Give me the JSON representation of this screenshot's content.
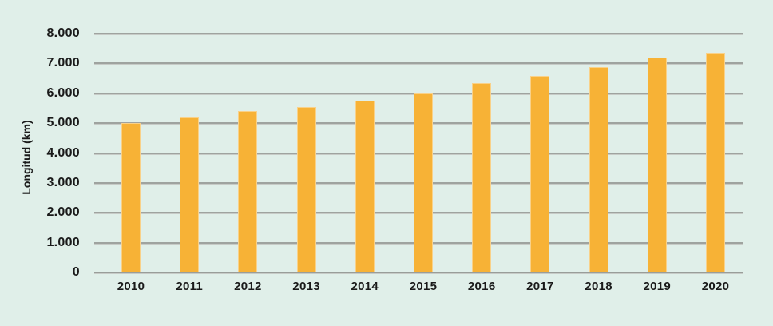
{
  "page": {
    "background_color": "#e0efe9",
    "text_color": "#1a1a1a"
  },
  "chart_data": {
    "type": "bar",
    "title": "",
    "xlabel": "",
    "ylabel": "Longitud (km)",
    "categories": [
      "2010",
      "2011",
      "2012",
      "2013",
      "2014",
      "2015",
      "2016",
      "2017",
      "2018",
      "2019",
      "2020"
    ],
    "values": [
      5000,
      5200,
      5400,
      5550,
      5750,
      6000,
      6350,
      6570,
      6870,
      7200,
      7350
    ],
    "ylim": [
      0,
      8000
    ],
    "ytick_values": [
      0,
      1000,
      2000,
      3000,
      4000,
      5000,
      6000,
      7000,
      8000
    ],
    "ytick_labels": [
      "0",
      "1.000",
      "2.000",
      "3.000",
      "4.000",
      "5.000",
      "6.000",
      "7.000",
      "8.000"
    ],
    "grid": "horizontal",
    "legend": "none",
    "bar_color": "#f7b236",
    "bar_border_color": "#f9d189",
    "gridline_color": "#9fa39f"
  }
}
